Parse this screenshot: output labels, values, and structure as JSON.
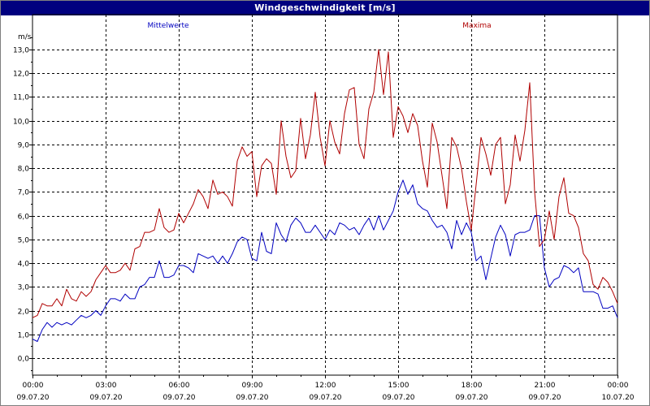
{
  "window": {
    "title": "Windgeschwindigkeit [m/s]"
  },
  "chart_data": {
    "type": "line",
    "title": "Windgeschwindigkeit [m/s]",
    "ylabel": "m/s",
    "ylim": [
      -1,
      14
    ],
    "yticks": [
      0,
      1,
      2,
      3,
      4,
      5,
      6,
      7,
      8,
      9,
      10,
      11,
      12,
      13
    ],
    "ytick_labels": [
      "0,0",
      "1,0",
      "2,0",
      "3,0",
      "4,0",
      "5,0",
      "6,0",
      "7,0",
      "8,0",
      "9,0",
      "10,0",
      "11,0",
      "12,0",
      "13,0"
    ],
    "xlim": [
      0,
      24
    ],
    "xticks": [
      0,
      3,
      6,
      9,
      12,
      15,
      18,
      21,
      24
    ],
    "xtick_labels": [
      {
        "time": "00:00",
        "date": "09.07.20"
      },
      {
        "time": "03:00",
        "date": "09.07.20"
      },
      {
        "time": "06:00",
        "date": "09.07.20"
      },
      {
        "time": "09:00",
        "date": "09.07.20"
      },
      {
        "time": "12:00",
        "date": "09.07.20"
      },
      {
        "time": "15:00",
        "date": "09.07.20"
      },
      {
        "time": "18:00",
        "date": "09.07.20"
      },
      {
        "time": "21:00",
        "date": "09.07.20"
      },
      {
        "time": "00:00",
        "date": "10.07.20"
      }
    ],
    "grid": true,
    "x_unit": "hours",
    "series": [
      {
        "name": "Mittelwerte",
        "color": "#0000c0",
        "legend_position": "top-left",
        "points": [
          [
            0.0,
            0.8
          ],
          [
            0.2,
            0.7
          ],
          [
            0.4,
            1.2
          ],
          [
            0.6,
            1.5
          ],
          [
            0.8,
            1.3
          ],
          [
            1.0,
            1.5
          ],
          [
            1.2,
            1.4
          ],
          [
            1.4,
            1.5
          ],
          [
            1.6,
            1.4
          ],
          [
            1.8,
            1.6
          ],
          [
            2.0,
            1.8
          ],
          [
            2.2,
            1.7
          ],
          [
            2.4,
            1.8
          ],
          [
            2.6,
            2.0
          ],
          [
            2.8,
            1.8
          ],
          [
            3.0,
            2.2
          ],
          [
            3.2,
            2.5
          ],
          [
            3.4,
            2.5
          ],
          [
            3.6,
            2.4
          ],
          [
            3.8,
            2.7
          ],
          [
            4.0,
            2.5
          ],
          [
            4.2,
            2.5
          ],
          [
            4.4,
            3.0
          ],
          [
            4.6,
            3.1
          ],
          [
            4.8,
            3.4
          ],
          [
            5.0,
            3.4
          ],
          [
            5.2,
            4.1
          ],
          [
            5.4,
            3.4
          ],
          [
            5.6,
            3.4
          ],
          [
            5.8,
            3.5
          ],
          [
            6.0,
            3.9
          ],
          [
            6.2,
            3.9
          ],
          [
            6.4,
            3.8
          ],
          [
            6.6,
            3.6
          ],
          [
            6.8,
            4.4
          ],
          [
            7.0,
            4.3
          ],
          [
            7.2,
            4.2
          ],
          [
            7.4,
            4.3
          ],
          [
            7.6,
            4.0
          ],
          [
            7.8,
            4.3
          ],
          [
            8.0,
            4.0
          ],
          [
            8.2,
            4.4
          ],
          [
            8.4,
            4.9
          ],
          [
            8.6,
            5.1
          ],
          [
            8.8,
            5.0
          ],
          [
            9.0,
            4.2
          ],
          [
            9.2,
            4.1
          ],
          [
            9.4,
            5.3
          ],
          [
            9.6,
            4.5
          ],
          [
            9.8,
            4.4
          ],
          [
            10.0,
            5.7
          ],
          [
            10.2,
            5.2
          ],
          [
            10.4,
            4.9
          ],
          [
            10.6,
            5.6
          ],
          [
            10.8,
            5.9
          ],
          [
            11.0,
            5.7
          ],
          [
            11.2,
            5.3
          ],
          [
            11.4,
            5.3
          ],
          [
            11.6,
            5.6
          ],
          [
            11.8,
            5.3
          ],
          [
            12.0,
            5.0
          ],
          [
            12.2,
            5.4
          ],
          [
            12.4,
            5.2
          ],
          [
            12.6,
            5.7
          ],
          [
            12.8,
            5.6
          ],
          [
            13.0,
            5.4
          ],
          [
            13.2,
            5.5
          ],
          [
            13.4,
            5.2
          ],
          [
            13.6,
            5.6
          ],
          [
            13.8,
            5.9
          ],
          [
            14.0,
            5.4
          ],
          [
            14.2,
            6.0
          ],
          [
            14.4,
            5.4
          ],
          [
            14.6,
            5.8
          ],
          [
            14.8,
            6.2
          ],
          [
            15.0,
            7.0
          ],
          [
            15.2,
            7.5
          ],
          [
            15.4,
            6.9
          ],
          [
            15.6,
            7.3
          ],
          [
            15.8,
            6.5
          ],
          [
            16.0,
            6.3
          ],
          [
            16.2,
            6.2
          ],
          [
            16.4,
            5.8
          ],
          [
            16.6,
            5.5
          ],
          [
            16.8,
            5.6
          ],
          [
            17.0,
            5.3
          ],
          [
            17.2,
            4.6
          ],
          [
            17.4,
            5.8
          ],
          [
            17.6,
            5.2
          ],
          [
            17.8,
            5.7
          ],
          [
            18.0,
            5.3
          ],
          [
            18.2,
            4.1
          ],
          [
            18.4,
            4.3
          ],
          [
            18.6,
            3.3
          ],
          [
            18.8,
            4.2
          ],
          [
            19.0,
            5.1
          ],
          [
            19.2,
            5.6
          ],
          [
            19.4,
            5.2
          ],
          [
            19.6,
            4.3
          ],
          [
            19.8,
            5.2
          ],
          [
            20.0,
            5.3
          ],
          [
            20.2,
            5.3
          ],
          [
            20.4,
            5.4
          ],
          [
            20.6,
            6.0
          ],
          [
            20.8,
            6.0
          ],
          [
            21.0,
            3.8
          ],
          [
            21.2,
            3.0
          ],
          [
            21.4,
            3.3
          ],
          [
            21.6,
            3.4
          ],
          [
            21.8,
            3.9
          ],
          [
            22.0,
            3.8
          ],
          [
            22.2,
            3.6
          ],
          [
            22.4,
            3.8
          ],
          [
            22.6,
            2.8
          ],
          [
            22.8,
            2.8
          ],
          [
            23.0,
            2.8
          ],
          [
            23.2,
            2.7
          ],
          [
            23.4,
            2.1
          ],
          [
            23.6,
            2.1
          ],
          [
            23.8,
            2.2
          ],
          [
            24.0,
            1.7
          ]
        ]
      },
      {
        "name": "Maxima",
        "color": "#b00000",
        "legend_position": "top-right",
        "points": [
          [
            0.0,
            1.7
          ],
          [
            0.2,
            1.8
          ],
          [
            0.4,
            2.3
          ],
          [
            0.6,
            2.2
          ],
          [
            0.8,
            2.2
          ],
          [
            1.0,
            2.5
          ],
          [
            1.2,
            2.2
          ],
          [
            1.4,
            2.9
          ],
          [
            1.6,
            2.5
          ],
          [
            1.8,
            2.4
          ],
          [
            2.0,
            2.8
          ],
          [
            2.2,
            2.6
          ],
          [
            2.4,
            2.8
          ],
          [
            2.6,
            3.3
          ],
          [
            2.8,
            3.6
          ],
          [
            3.0,
            3.9
          ],
          [
            3.2,
            3.6
          ],
          [
            3.4,
            3.6
          ],
          [
            3.6,
            3.7
          ],
          [
            3.8,
            4.0
          ],
          [
            4.0,
            3.7
          ],
          [
            4.2,
            4.6
          ],
          [
            4.4,
            4.7
          ],
          [
            4.6,
            5.3
          ],
          [
            4.8,
            5.3
          ],
          [
            5.0,
            5.4
          ],
          [
            5.2,
            6.3
          ],
          [
            5.4,
            5.5
          ],
          [
            5.6,
            5.3
          ],
          [
            5.8,
            5.4
          ],
          [
            6.0,
            6.1
          ],
          [
            6.2,
            5.7
          ],
          [
            6.4,
            6.1
          ],
          [
            6.6,
            6.5
          ],
          [
            6.8,
            7.1
          ],
          [
            7.0,
            6.8
          ],
          [
            7.2,
            6.3
          ],
          [
            7.4,
            7.5
          ],
          [
            7.6,
            6.9
          ],
          [
            7.8,
            7.0
          ],
          [
            8.0,
            6.8
          ],
          [
            8.2,
            6.4
          ],
          [
            8.4,
            8.3
          ],
          [
            8.6,
            8.9
          ],
          [
            8.8,
            8.5
          ],
          [
            9.0,
            8.7
          ],
          [
            9.2,
            6.8
          ],
          [
            9.4,
            8.1
          ],
          [
            9.6,
            8.4
          ],
          [
            9.8,
            8.2
          ],
          [
            10.0,
            6.9
          ],
          [
            10.2,
            10.0
          ],
          [
            10.4,
            8.5
          ],
          [
            10.6,
            7.6
          ],
          [
            10.8,
            7.9
          ],
          [
            11.0,
            10.1
          ],
          [
            11.2,
            8.4
          ],
          [
            11.4,
            9.4
          ],
          [
            11.6,
            11.2
          ],
          [
            11.8,
            9.3
          ],
          [
            12.0,
            8.1
          ],
          [
            12.2,
            10.0
          ],
          [
            12.4,
            9.1
          ],
          [
            12.6,
            8.6
          ],
          [
            12.8,
            10.3
          ],
          [
            13.0,
            11.3
          ],
          [
            13.2,
            11.4
          ],
          [
            13.4,
            9.0
          ],
          [
            13.6,
            8.4
          ],
          [
            13.8,
            10.5
          ],
          [
            14.0,
            11.2
          ],
          [
            14.2,
            13.0
          ],
          [
            14.4,
            11.1
          ],
          [
            14.6,
            12.9
          ],
          [
            14.8,
            9.3
          ],
          [
            15.0,
            10.6
          ],
          [
            15.2,
            10.2
          ],
          [
            15.4,
            9.5
          ],
          [
            15.6,
            10.3
          ],
          [
            15.8,
            9.8
          ],
          [
            16.0,
            8.3
          ],
          [
            16.2,
            7.2
          ],
          [
            16.4,
            9.9
          ],
          [
            16.6,
            9.1
          ],
          [
            16.8,
            7.7
          ],
          [
            17.0,
            6.3
          ],
          [
            17.2,
            9.3
          ],
          [
            17.4,
            8.9
          ],
          [
            17.6,
            8.0
          ],
          [
            17.8,
            6.6
          ],
          [
            18.0,
            5.4
          ],
          [
            18.2,
            7.3
          ],
          [
            18.4,
            9.3
          ],
          [
            18.6,
            8.6
          ],
          [
            18.8,
            7.7
          ],
          [
            19.0,
            9.0
          ],
          [
            19.2,
            9.3
          ],
          [
            19.4,
            6.5
          ],
          [
            19.6,
            7.3
          ],
          [
            19.8,
            9.4
          ],
          [
            20.0,
            8.3
          ],
          [
            20.2,
            9.6
          ],
          [
            20.4,
            11.6
          ],
          [
            20.6,
            7.0
          ],
          [
            20.8,
            4.7
          ],
          [
            21.0,
            5.0
          ],
          [
            21.2,
            6.2
          ],
          [
            21.4,
            5.0
          ],
          [
            21.6,
            6.8
          ],
          [
            21.8,
            7.6
          ],
          [
            22.0,
            6.1
          ],
          [
            22.2,
            6.0
          ],
          [
            22.4,
            5.5
          ],
          [
            22.6,
            4.4
          ],
          [
            22.8,
            4.1
          ],
          [
            23.0,
            3.1
          ],
          [
            23.2,
            2.9
          ],
          [
            23.4,
            3.4
          ],
          [
            23.6,
            3.2
          ],
          [
            23.8,
            2.8
          ],
          [
            24.0,
            2.3
          ]
        ]
      }
    ]
  }
}
